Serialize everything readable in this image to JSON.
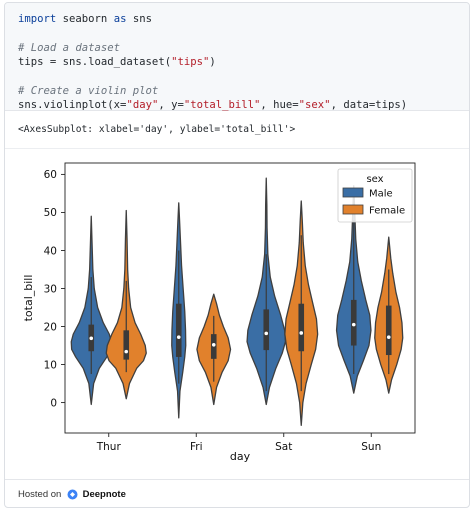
{
  "code": {
    "line1": {
      "kw1": "import",
      "mid": " seaborn ",
      "kw2": "as",
      "end": " sns"
    },
    "comment1": "# Load a dataset",
    "line3": {
      "pre": "tips = sns.load_dataset(",
      "str": "\"tips\"",
      "post": ")"
    },
    "comment2": "# Create a violin plot",
    "line5": {
      "a": "sns.violinplot(x=",
      "s1": "\"day\"",
      "b": ", y=",
      "s2": "\"total_bill\"",
      "c": ", hue=",
      "s3": "\"sex\"",
      "d": ", data=tips)"
    }
  },
  "output_text": "<AxesSubplot: xlabel='day', ylabel='total_bill'>",
  "footer": {
    "prefix": "Hosted on",
    "brand": "Deepnote"
  },
  "colors": {
    "male": "#3a6ea5",
    "female": "#e1812c",
    "outline": "#3f3f3f",
    "logo": "#3b82f6"
  },
  "chart_data": {
    "type": "violin",
    "xlabel": "day",
    "ylabel": "total_bill",
    "categories": [
      "Thur",
      "Fri",
      "Sat",
      "Sun"
    ],
    "ylim": [
      -8,
      63
    ],
    "yticks": [
      0,
      10,
      20,
      30,
      40,
      50,
      60
    ],
    "legend": {
      "title": "sex",
      "placement": "top-right",
      "entries": [
        "Male",
        "Female"
      ]
    },
    "series": [
      {
        "name": "Male",
        "violins": [
          {
            "min": -0.5,
            "max": 49,
            "q1": 13.5,
            "median": 16.9,
            "q3": 20.5,
            "wlo": 7.5,
            "whi": 33,
            "profile": [
              [
                -0.5,
                0
              ],
              [
                5,
                0.12
              ],
              [
                9,
                0.4
              ],
              [
                12,
                0.78
              ],
              [
                14,
                0.98
              ],
              [
                16,
                1
              ],
              [
                18,
                0.9
              ],
              [
                21,
                0.6
              ],
              [
                25,
                0.32
              ],
              [
                30,
                0.15
              ],
              [
                35,
                0.08
              ],
              [
                42,
                0.04
              ],
              [
                49,
                0
              ]
            ]
          },
          {
            "min": -4,
            "max": 52.5,
            "q1": 12,
            "median": 17.2,
            "q3": 26,
            "wlo": 5,
            "whi": 40,
            "profile": [
              [
                -4,
                0
              ],
              [
                3,
                0.06
              ],
              [
                8,
                0.2
              ],
              [
                12,
                0.3
              ],
              [
                15,
                0.35
              ],
              [
                19,
                0.34
              ],
              [
                24,
                0.3
              ],
              [
                30,
                0.22
              ],
              [
                36,
                0.14
              ],
              [
                42,
                0.09
              ],
              [
                48,
                0.04
              ],
              [
                52.5,
                0
              ]
            ]
          },
          {
            "min": -0.5,
            "max": 59,
            "q1": 13.8,
            "median": 18.2,
            "q3": 24.5,
            "wlo": 3,
            "whi": 39,
            "profile": [
              [
                -0.5,
                0
              ],
              [
                4,
                0.16
              ],
              [
                9,
                0.48
              ],
              [
                13,
                0.8
              ],
              [
                16,
                0.96
              ],
              [
                19,
                0.92
              ],
              [
                23,
                0.72
              ],
              [
                28,
                0.42
              ],
              [
                33,
                0.2
              ],
              [
                39,
                0.08
              ],
              [
                46,
                0.04
              ],
              [
                52,
                0.03
              ],
              [
                59,
                0
              ]
            ]
          },
          {
            "min": 2.5,
            "max": 57,
            "q1": 15,
            "median": 20.5,
            "q3": 27,
            "wlo": 7.5,
            "whi": 48,
            "profile": [
              [
                2.5,
                0
              ],
              [
                7,
                0.18
              ],
              [
                11,
                0.48
              ],
              [
                15,
                0.76
              ],
              [
                19,
                0.86
              ],
              [
                23,
                0.8
              ],
              [
                27,
                0.6
              ],
              [
                32,
                0.38
              ],
              [
                37,
                0.2
              ],
              [
                43,
                0.1
              ],
              [
                50,
                0.05
              ],
              [
                57,
                0
              ]
            ]
          }
        ]
      },
      {
        "name": "Female",
        "violins": [
          {
            "min": 1,
            "max": 50.5,
            "q1": 11.3,
            "median": 13.4,
            "q3": 19,
            "wlo": 8,
            "whi": 32,
            "profile": [
              [
                1,
                0
              ],
              [
                5,
                0.16
              ],
              [
                9,
                0.52
              ],
              [
                11,
                0.86
              ],
              [
                13,
                1
              ],
              [
                15,
                0.95
              ],
              [
                18,
                0.72
              ],
              [
                21,
                0.44
              ],
              [
                25,
                0.22
              ],
              [
                30,
                0.12
              ],
              [
                35,
                0.07
              ],
              [
                43,
                0.04
              ],
              [
                50.5,
                0
              ]
            ]
          },
          {
            "min": -0.5,
            "max": 28.5,
            "q1": 11.5,
            "median": 15.2,
            "q3": 18,
            "wlo": 5.5,
            "whi": 22.8,
            "profile": [
              [
                -0.5,
                0
              ],
              [
                4,
                0.14
              ],
              [
                8,
                0.42
              ],
              [
                11,
                0.72
              ],
              [
                14,
                0.84
              ],
              [
                17,
                0.72
              ],
              [
                20,
                0.48
              ],
              [
                23,
                0.28
              ],
              [
                26,
                0.14
              ],
              [
                28.5,
                0
              ]
            ]
          },
          {
            "min": -6,
            "max": 53,
            "q1": 13.5,
            "median": 18.3,
            "q3": 26,
            "wlo": 3,
            "whi": 44,
            "profile": [
              [
                -6,
                0
              ],
              [
                0,
                0.08
              ],
              [
                5,
                0.24
              ],
              [
                10,
                0.5
              ],
              [
                14,
                0.72
              ],
              [
                18,
                0.82
              ],
              [
                22,
                0.76
              ],
              [
                26,
                0.58
              ],
              [
                31,
                0.36
              ],
              [
                36,
                0.2
              ],
              [
                42,
                0.1
              ],
              [
                48,
                0.05
              ],
              [
                53,
                0
              ]
            ]
          },
          {
            "min": 2.5,
            "max": 43.5,
            "q1": 12.5,
            "median": 17.2,
            "q3": 25.5,
            "wlo": 7.5,
            "whi": 35,
            "profile": [
              [
                2.5,
                0
              ],
              [
                6,
                0.14
              ],
              [
                10,
                0.4
              ],
              [
                14,
                0.62
              ],
              [
                17,
                0.7
              ],
              [
                21,
                0.66
              ],
              [
                25,
                0.54
              ],
              [
                29,
                0.36
              ],
              [
                34,
                0.2
              ],
              [
                38,
                0.1
              ],
              [
                43.5,
                0
              ]
            ]
          }
        ]
      }
    ]
  }
}
